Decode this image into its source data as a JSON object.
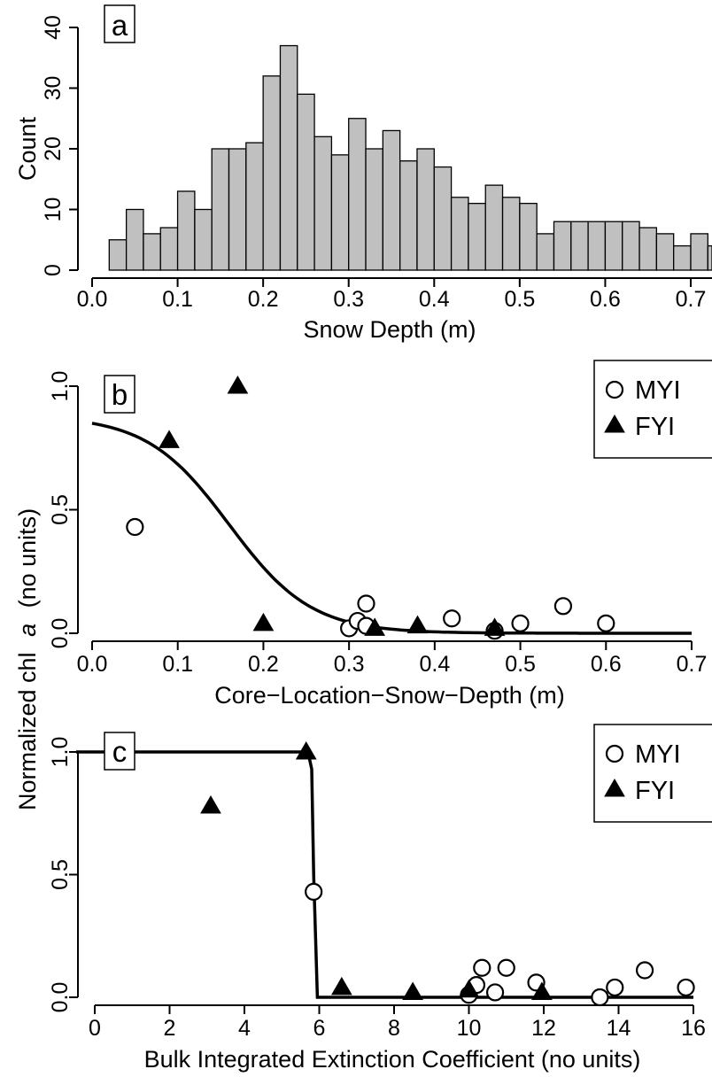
{
  "shared_ylabel": {
    "part1": "Normalized chl",
    "italic": "a",
    "part2": "(no units)"
  },
  "chart_data": [
    {
      "panel": "a",
      "type": "bar",
      "xlabel": "Snow Depth (m)",
      "ylabel": "Count",
      "xlim": [
        0.0,
        0.72
      ],
      "ylim": [
        0,
        40
      ],
      "xticks": [
        "0.0",
        "0.1",
        "0.2",
        "0.3",
        "0.4",
        "0.5",
        "0.6",
        "0.7"
      ],
      "yticks": [
        "0",
        "10",
        "20",
        "30",
        "40"
      ],
      "bin_width": 0.02,
      "bin_start": 0.02,
      "values": [
        5,
        10,
        6,
        7,
        13,
        10,
        20,
        20,
        21,
        32,
        37,
        29,
        22,
        19,
        25,
        20,
        23,
        18,
        20,
        17,
        12,
        11,
        14,
        12,
        11,
        6,
        8,
        8,
        8,
        8,
        8,
        7,
        6,
        4,
        6,
        4,
        8,
        3,
        4
      ]
    },
    {
      "panel": "b",
      "type": "scatter",
      "xlabel": "Core−Location−Snow−Depth (m)",
      "xlim": [
        0.0,
        0.7
      ],
      "ylim": [
        0.0,
        1.0
      ],
      "xticks": [
        "0.0",
        "0.1",
        "0.2",
        "0.3",
        "0.4",
        "0.5",
        "0.6",
        "0.7"
      ],
      "yticks": [
        "0.0",
        "0.5",
        "1.0"
      ],
      "legend": [
        "MYI",
        "FYI"
      ],
      "series": [
        {
          "name": "MYI",
          "marker": "open-circle",
          "points": [
            [
              0.05,
              0.43
            ],
            [
              0.3,
              0.02
            ],
            [
              0.31,
              0.05
            ],
            [
              0.32,
              0.12
            ],
            [
              0.32,
              0.03
            ],
            [
              0.42,
              0.06
            ],
            [
              0.47,
              0.01
            ],
            [
              0.5,
              0.04
            ],
            [
              0.55,
              0.11
            ],
            [
              0.6,
              0.04
            ]
          ]
        },
        {
          "name": "FYI",
          "marker": "filled-triangle",
          "points": [
            [
              0.09,
              0.78
            ],
            [
              0.17,
              1.0
            ],
            [
              0.2,
              0.04
            ],
            [
              0.33,
              0.02
            ],
            [
              0.38,
              0.03
            ],
            [
              0.47,
              0.02
            ]
          ]
        }
      ],
      "fit": {
        "form": "0.88 / (1 + exp((x - 0.16) / 0.048))"
      }
    },
    {
      "panel": "c",
      "type": "scatter",
      "xlabel": "Bulk Integrated Extinction Coefficient (no units)",
      "xlim": [
        0,
        16
      ],
      "ylim": [
        0.0,
        1.0
      ],
      "xticks": [
        "0",
        "2",
        "4",
        "6",
        "8",
        "10",
        "12",
        "14",
        "16"
      ],
      "yticks": [
        "0.0",
        "0.5",
        "1.0"
      ],
      "legend": [
        "MYI",
        "FYI"
      ],
      "series": [
        {
          "name": "MYI",
          "marker": "open-circle",
          "points": [
            [
              5.85,
              0.43
            ],
            [
              10.0,
              0.01
            ],
            [
              10.2,
              0.05
            ],
            [
              10.35,
              0.12
            ],
            [
              10.7,
              0.02
            ],
            [
              11.0,
              0.12
            ],
            [
              11.8,
              0.06
            ],
            [
              13.5,
              0.0
            ],
            [
              13.9,
              0.04
            ],
            [
              14.7,
              0.11
            ],
            [
              15.8,
              0.04
            ]
          ]
        },
        {
          "name": "FYI",
          "marker": "filled-triangle",
          "points": [
            [
              3.1,
              0.78
            ],
            [
              5.65,
              1.0
            ],
            [
              6.6,
              0.04
            ],
            [
              8.5,
              0.02
            ],
            [
              10.0,
              0.03
            ],
            [
              11.95,
              0.02
            ]
          ]
        }
      ],
      "fit": {
        "form": "step: 1.0 until ~5.7, drops to 0 by ~5.95"
      }
    }
  ]
}
